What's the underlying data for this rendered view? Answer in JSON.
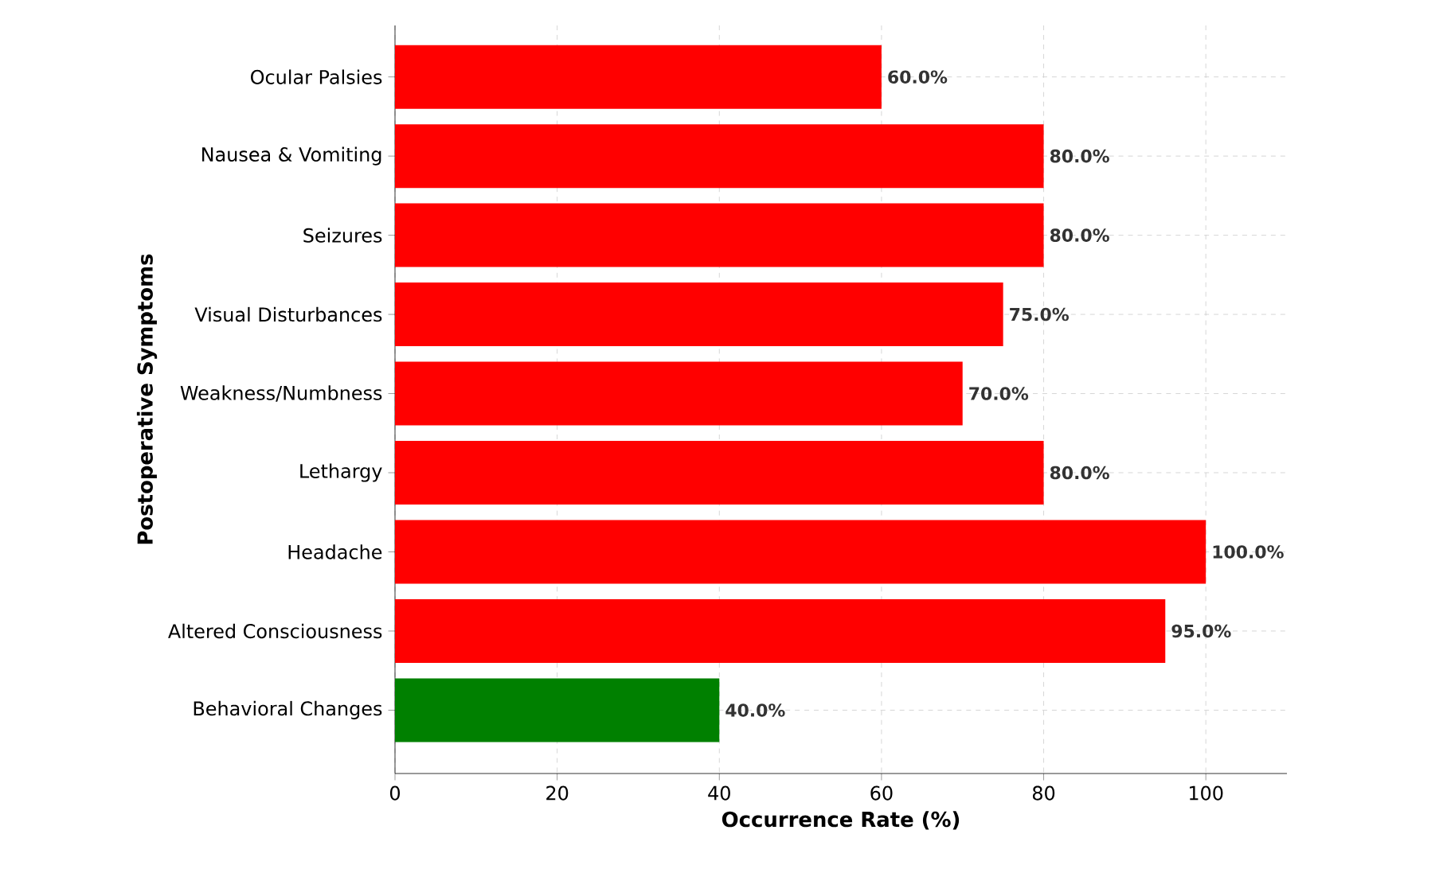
{
  "chart_data": {
    "type": "bar",
    "orientation": "horizontal",
    "xlabel": "Occurrence Rate (%)",
    "ylabel": "Postoperative Symptoms",
    "categories": [
      "Ocular Palsies",
      "Nausea & Vomiting",
      "Seizures",
      "Visual Disturbances",
      "Weakness/Numbness",
      "Lethargy",
      "Headache",
      "Altered Consciousness",
      "Behavioral Changes"
    ],
    "values": [
      60,
      80,
      80,
      75,
      70,
      80,
      100,
      95,
      40
    ],
    "colors": [
      "#ff0000",
      "#ff0000",
      "#ff0000",
      "#ff0000",
      "#ff0000",
      "#ff0000",
      "#ff0000",
      "#ff0000",
      "#008000"
    ],
    "value_labels": [
      "60.0%",
      "80.0%",
      "80.0%",
      "75.0%",
      "70.0%",
      "80.0%",
      "100.0%",
      "95.0%",
      "40.0%"
    ],
    "xlim": [
      0,
      110
    ],
    "xticks": [
      0,
      20,
      40,
      60,
      80,
      100
    ],
    "grid": true
  }
}
